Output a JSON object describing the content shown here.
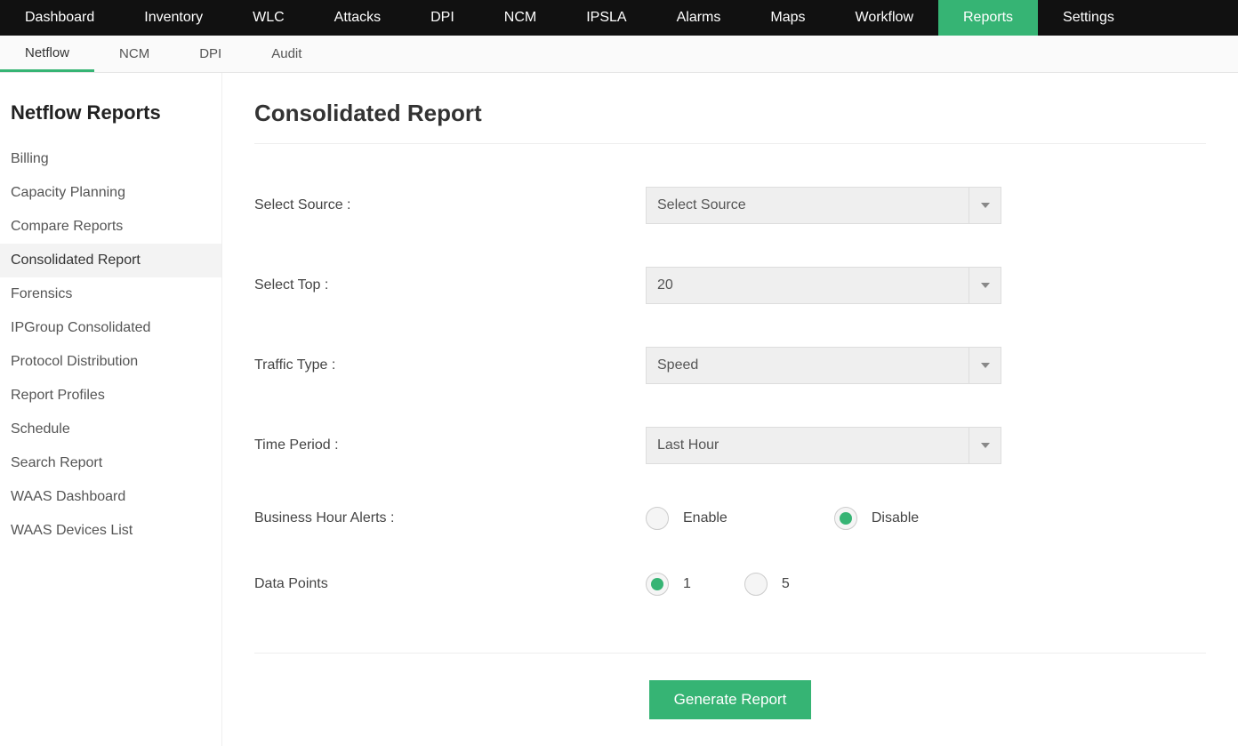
{
  "colors": {
    "accent": "#36b474",
    "topnav_bg": "#111111",
    "select_bg": "#efefef"
  },
  "topnav": {
    "items": [
      {
        "label": "Dashboard",
        "active": false
      },
      {
        "label": "Inventory",
        "active": false
      },
      {
        "label": "WLC",
        "active": false
      },
      {
        "label": "Attacks",
        "active": false
      },
      {
        "label": "DPI",
        "active": false
      },
      {
        "label": "NCM",
        "active": false
      },
      {
        "label": "IPSLA",
        "active": false
      },
      {
        "label": "Alarms",
        "active": false
      },
      {
        "label": "Maps",
        "active": false
      },
      {
        "label": "Workflow",
        "active": false
      },
      {
        "label": "Reports",
        "active": true
      },
      {
        "label": "Settings",
        "active": false
      }
    ]
  },
  "subnav": {
    "items": [
      {
        "label": "Netflow",
        "active": true
      },
      {
        "label": "NCM",
        "active": false
      },
      {
        "label": "DPI",
        "active": false
      },
      {
        "label": "Audit",
        "active": false
      }
    ]
  },
  "sidebar": {
    "title": "Netflow Reports",
    "items": [
      {
        "label": "Billing",
        "active": false
      },
      {
        "label": "Capacity Planning",
        "active": false
      },
      {
        "label": "Compare Reports",
        "active": false
      },
      {
        "label": "Consolidated Report",
        "active": true
      },
      {
        "label": "Forensics",
        "active": false
      },
      {
        "label": "IPGroup Consolidated",
        "active": false
      },
      {
        "label": "Protocol Distribution",
        "active": false
      },
      {
        "label": "Report Profiles",
        "active": false
      },
      {
        "label": "Schedule",
        "active": false
      },
      {
        "label": "Search Report",
        "active": false
      },
      {
        "label": "WAAS Dashboard",
        "active": false
      },
      {
        "label": "WAAS Devices List",
        "active": false
      }
    ]
  },
  "page": {
    "title": "Consolidated Report",
    "form": {
      "select_source": {
        "label": "Select Source :",
        "value": "Select Source"
      },
      "select_top": {
        "label": "Select Top :",
        "value": "20"
      },
      "traffic_type": {
        "label": "Traffic Type :",
        "value": "Speed"
      },
      "time_period": {
        "label": "Time Period :",
        "value": "Last Hour"
      },
      "business_hour": {
        "label": "Business Hour Alerts :",
        "options": [
          {
            "label": "Enable",
            "selected": false
          },
          {
            "label": "Disable",
            "selected": true
          }
        ]
      },
      "data_points": {
        "label": "Data Points",
        "options": [
          {
            "label": "1",
            "selected": true
          },
          {
            "label": "5",
            "selected": false
          }
        ]
      },
      "submit_label": "Generate Report"
    }
  }
}
